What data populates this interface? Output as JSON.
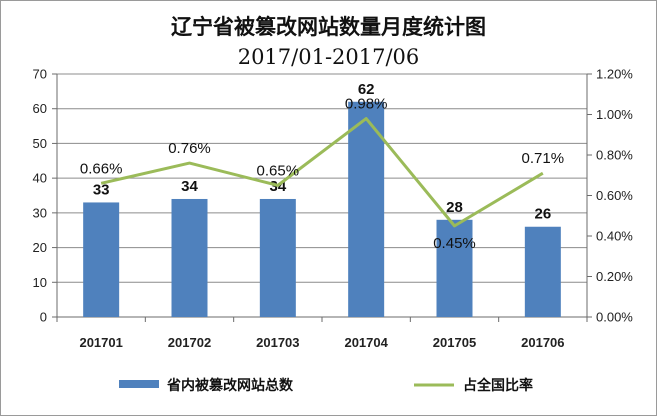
{
  "chart_data": {
    "type": "bar",
    "title": "辽宁省被篡改网站数量月度统计图",
    "subtitle": "2017/01-2017/06",
    "categories": [
      "201701",
      "201702",
      "201703",
      "201704",
      "201705",
      "201706"
    ],
    "series": [
      {
        "name": "省内被篡改网站总数",
        "type": "bar",
        "axis": "left",
        "color": "#4f81bd",
        "values": [
          33,
          34,
          34,
          62,
          28,
          26
        ],
        "labels": [
          "33",
          "34",
          "34",
          "62",
          "28",
          "26"
        ]
      },
      {
        "name": "占全国比率",
        "type": "line",
        "axis": "right",
        "color": "#9bbb59",
        "values": [
          0.0066,
          0.0076,
          0.0065,
          0.0098,
          0.0045,
          0.0071
        ],
        "labels": [
          "0.66%",
          "0.76%",
          "0.65%",
          "0.98%",
          "0.45%",
          "0.71%"
        ]
      }
    ],
    "ylim": [
      0,
      70
    ],
    "yticks": [
      "0",
      "10",
      "20",
      "30",
      "40",
      "50",
      "60",
      "70"
    ],
    "y2lim": [
      0,
      0.012
    ],
    "y2ticks": [
      "0.00%",
      "0.20%",
      "0.40%",
      "0.60%",
      "0.80%",
      "1.00%",
      "1.20%"
    ],
    "grid": true,
    "legend_position": "bottom"
  }
}
